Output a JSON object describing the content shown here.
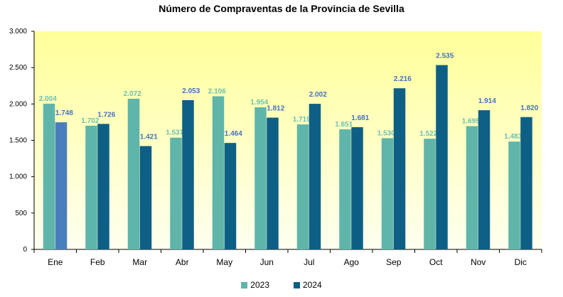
{
  "chart_data": {
    "type": "bar",
    "title": "Número de Compraventas de la Provincia de Sevilla",
    "categories": [
      "Ene",
      "Feb",
      "Mar",
      "Abr",
      "May",
      "Jun",
      "Jul",
      "Ago",
      "Sep",
      "Oct",
      "Nov",
      "Dic"
    ],
    "series": [
      {
        "name": "2023",
        "color": "#5fb5aa",
        "label_color": "#6cc0b0",
        "values": [
          2004,
          1702,
          2072,
          1537,
          2106,
          1954,
          1719,
          1651,
          1530,
          1522,
          1695,
          1483
        ],
        "labels": [
          "2.004",
          "1.702",
          "2.072",
          "1.537",
          "2.106",
          "1.954",
          "1.719",
          "1.651",
          "1.530",
          "1.522",
          "1.695",
          "1.483"
        ]
      },
      {
        "name": "2024",
        "color": "#0e5f85",
        "highlight_color": "#4a7ebb",
        "label_color": "#4472c4",
        "values": [
          1748,
          1726,
          1421,
          2053,
          1464,
          1812,
          2002,
          1681,
          2216,
          2535,
          1914,
          1820
        ],
        "labels": [
          "1.748",
          "1.726",
          "1.421",
          "2.053",
          "1.464",
          "1.812",
          "2.002",
          "1.681",
          "2.216",
          "2.535",
          "1.914",
          "1.820"
        ]
      }
    ],
    "ylim": [
      0,
      3000
    ],
    "yticks": [
      0,
      500,
      1000,
      1500,
      2000,
      2500,
      3000
    ],
    "ytick_labels": [
      "0",
      "500",
      "1.000",
      "1.500",
      "2.000",
      "2.500",
      "3.000"
    ],
    "grid": false,
    "legend": "bottom",
    "background": "gradient yellow (#ffff99) to pale"
  }
}
